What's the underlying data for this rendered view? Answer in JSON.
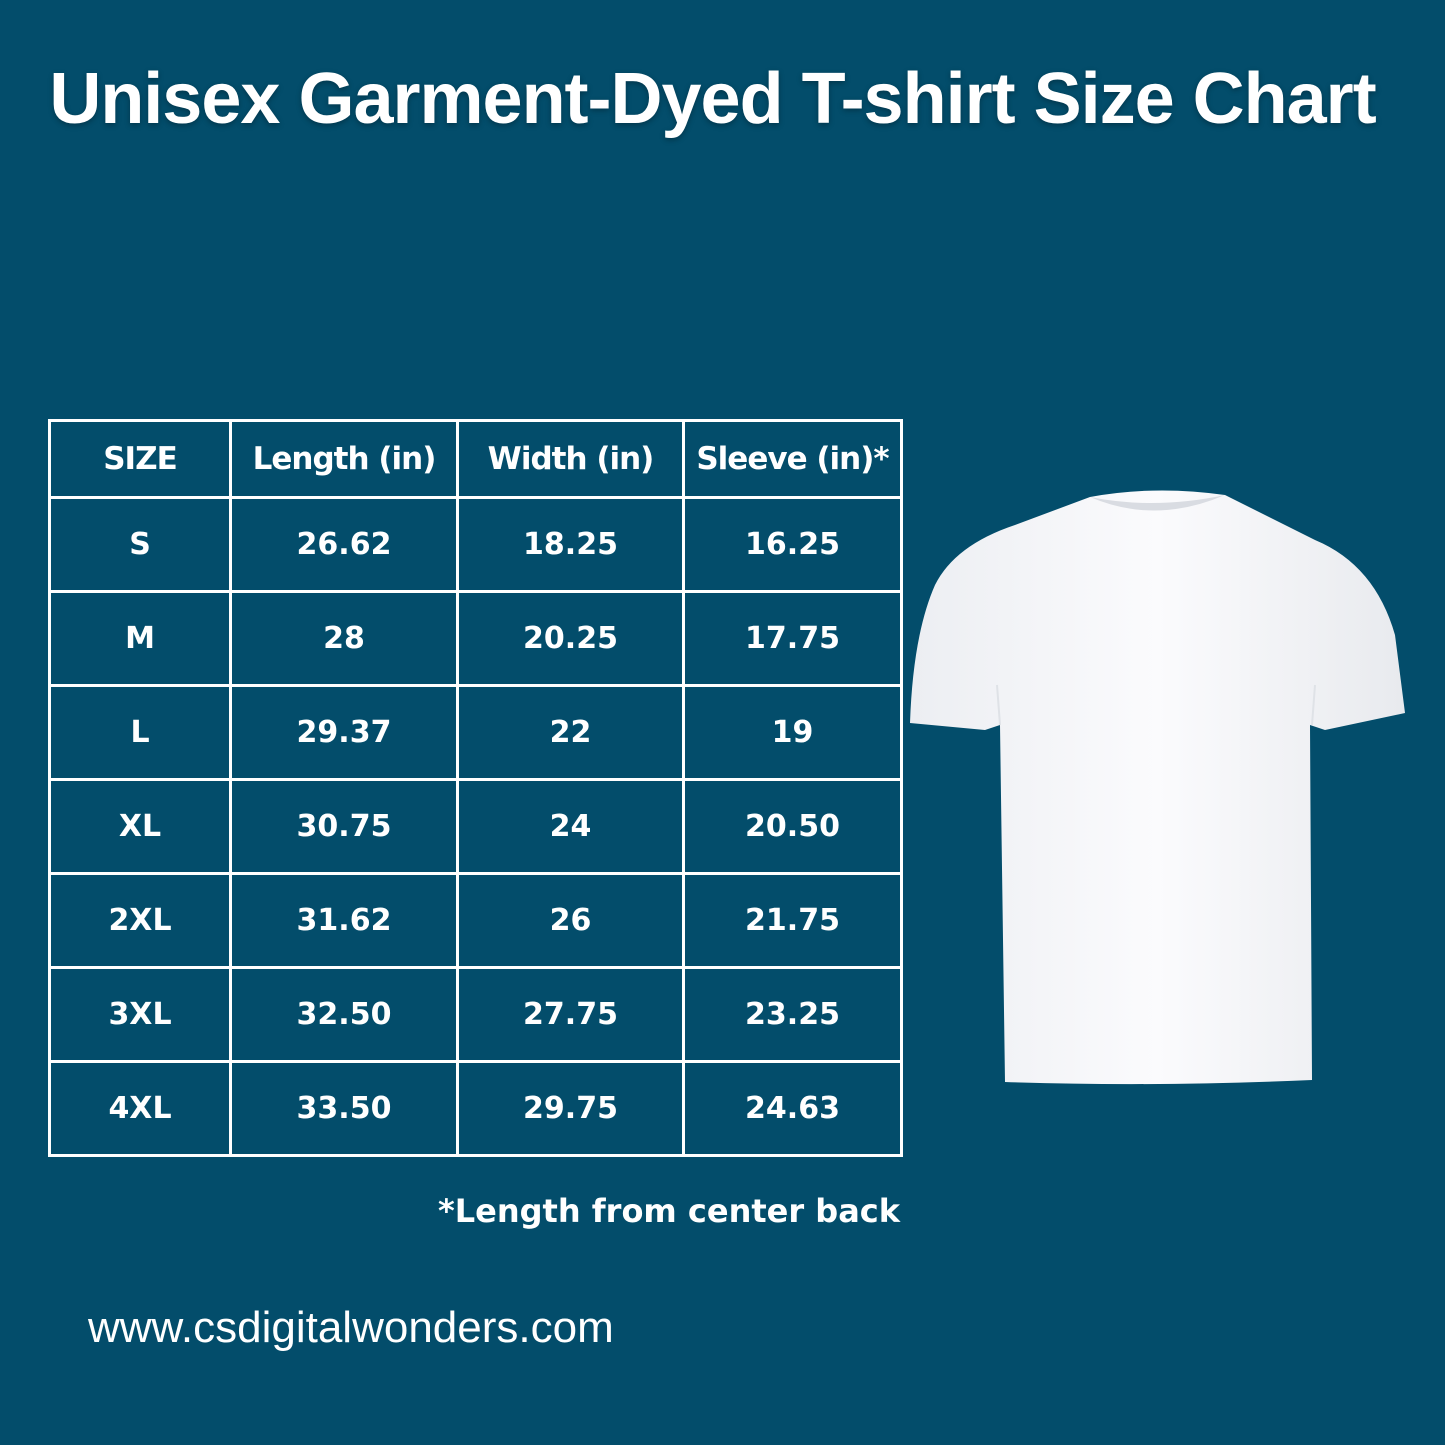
{
  "title": "Unisex Garment-Dyed T-shirt Size Chart",
  "table": {
    "headers": [
      "SIZE",
      "Length (in)",
      "Width (in)",
      "Sleeve (in)*"
    ],
    "rows": [
      [
        "S",
        "26.62",
        "18.25",
        "16.25"
      ],
      [
        "M",
        "28",
        "20.25",
        "17.75"
      ],
      [
        "L",
        "29.37",
        "22",
        "19"
      ],
      [
        "XL",
        "30.75",
        "24",
        "20.50"
      ],
      [
        "2XL",
        "31.62",
        "26",
        "21.75"
      ],
      [
        "3XL",
        "32.50",
        "27.75",
        "23.25"
      ],
      [
        "4XL",
        "33.50",
        "29.75",
        "24.63"
      ]
    ]
  },
  "footnote": "*Length from center back",
  "website": "www.csdigitalwonders.com",
  "image": {
    "icon": "white-tshirt-image"
  },
  "colors": {
    "background": "#034d6b",
    "text": "#ffffff"
  }
}
